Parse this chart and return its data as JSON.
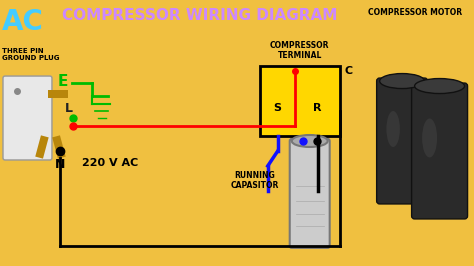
{
  "bg_color": "#F0C040",
  "title": "COMPRESSOR WIRING DIAGRAM",
  "title_color": "#CC88FF",
  "title_fontsize": 11,
  "ac_text": "AC",
  "ac_color": "#44CCFF",
  "compressor_motor_label": "COMPRESSOR MOTOR",
  "compressor_terminal_label": "COMPRESSOR\nTERMINAL",
  "terminal_box_color": "#FFD700",
  "terminal_C": "C",
  "terminal_S": "S",
  "terminal_R": "R",
  "three_pin_label": "THREE PIN\nGROUND PLUG",
  "voltage_label": "220 V AC",
  "N_label": "N",
  "E_label": "E",
  "L_label": "L",
  "running_cap_label": "RUNNING\nCAPASITOR",
  "wire_red": "#FF0000",
  "wire_black": "#000000",
  "wire_blue": "#1111FF",
  "wire_green": "#00BB00",
  "plug_color": "#E8E8E8",
  "pin_color": "#B8860B"
}
